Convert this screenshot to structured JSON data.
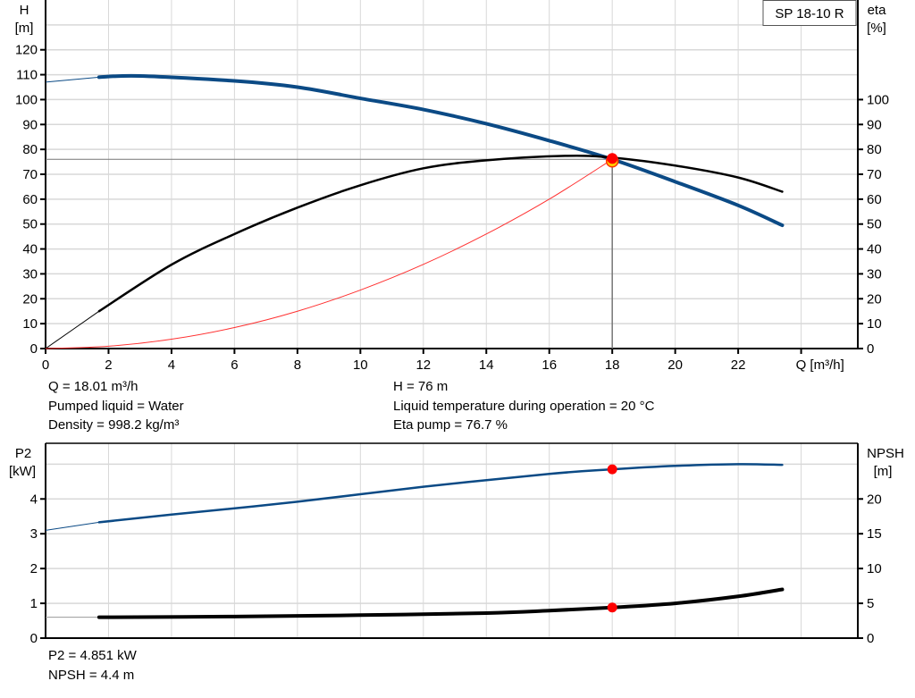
{
  "chart_data": [
    {
      "type": "line",
      "legend_box": "SP 18-10 R",
      "xlabel": "Q [m³/h]",
      "ylabel": [
        "H",
        "[m]"
      ],
      "y2label": [
        "eta",
        "[%]"
      ],
      "xlim": [
        0,
        25.8
      ],
      "ylim": [
        0,
        140
      ],
      "y2lim": [
        0,
        140
      ],
      "xticks": [
        "0",
        "2",
        "4",
        "6",
        "8",
        "10",
        "12",
        "14",
        "16",
        "18",
        "20",
        "22"
      ],
      "yticks": [
        "0",
        "10",
        "20",
        "30",
        "40",
        "50",
        "60",
        "70",
        "80",
        "90",
        "100",
        "110",
        "120"
      ],
      "y2ticks": [
        "0",
        "10",
        "20",
        "30",
        "40",
        "50",
        "60",
        "70",
        "80",
        "90",
        "100"
      ],
      "grid": true,
      "colors": {
        "head": "#0b4a85",
        "eta": "#000000",
        "system": "#ff3030",
        "point": "#ff0000",
        "reference": "#777777"
      },
      "series": [
        {
          "key": "head",
          "axis": "left",
          "x": [
            0,
            1.7,
            3,
            6,
            8,
            10,
            12,
            14,
            16,
            18,
            20,
            22,
            23.4
          ],
          "y": [
            107,
            109,
            109.5,
            107.5,
            105,
            100.5,
            96,
            90.3,
            83.5,
            76,
            67,
            57.5,
            49.5
          ],
          "thin_until": 1.7
        },
        {
          "key": "eta",
          "axis": "right",
          "x": [
            0,
            1.7,
            4,
            6,
            8,
            10,
            12,
            14,
            16.5,
            18,
            20,
            22,
            23.4
          ],
          "y": [
            0,
            15,
            33.7,
            46,
            56.6,
            65.6,
            72.4,
            75.6,
            77.4,
            76.7,
            73.5,
            68.7,
            63
          ],
          "thin_until": 1.7
        },
        {
          "key": "system",
          "axis": "left",
          "x": [
            0,
            2,
            4,
            6,
            8,
            10,
            12,
            14,
            16,
            18
          ],
          "y": [
            0,
            0.94,
            3.75,
            8.44,
            15,
            23.5,
            33.8,
            46,
            60,
            76
          ]
        }
      ],
      "duty_point": {
        "Q": 18,
        "H": 76
      }
    },
    {
      "type": "line",
      "ylabel": [
        "P2",
        "[kW]"
      ],
      "y2label": [
        "NPSH",
        "[m]"
      ],
      "xlim": [
        0,
        25.8
      ],
      "ylim": [
        0,
        5.6
      ],
      "y2lim": [
        0,
        28
      ],
      "yticks": [
        "0",
        "1",
        "2",
        "3",
        "4"
      ],
      "y2ticks": [
        "0",
        "5",
        "10",
        "15",
        "20"
      ],
      "grid": true,
      "colors": {
        "p2": "#0b4a85",
        "npsh": "#000000",
        "point": "#ff0000"
      },
      "series": [
        {
          "key": "p2",
          "axis": "left",
          "x": [
            0,
            1.7,
            4,
            8,
            12,
            16,
            18,
            20,
            22,
            23.4
          ],
          "y": [
            3.1,
            3.33,
            3.55,
            3.92,
            4.35,
            4.72,
            4.851,
            4.95,
            5.0,
            4.98
          ],
          "thin_until": 1.7
        },
        {
          "key": "npsh",
          "axis": "right",
          "x": [
            0,
            1.7,
            6,
            10,
            14,
            16,
            18,
            20,
            22,
            23.4
          ],
          "y": [
            3.0,
            3.0,
            3.1,
            3.3,
            3.6,
            3.95,
            4.4,
            5.0,
            6.0,
            7.0
          ],
          "thin_until": 1.7
        }
      ],
      "duty_point": {
        "Q": 18,
        "P2": 4.851,
        "NPSH": 4.4
      }
    }
  ],
  "info": {
    "q": "Q = 18.01 m³/h",
    "liquid": "Pumped liquid = Water",
    "density": "Density = 998.2 kg/m³",
    "h": "H = 76 m",
    "temp": "Liquid temperature during operation = 20 °C",
    "eta": "Eta pump = 76.7 %",
    "p2": "P2 = 4.851 kW",
    "npsh": "NPSH = 4.4 m"
  }
}
